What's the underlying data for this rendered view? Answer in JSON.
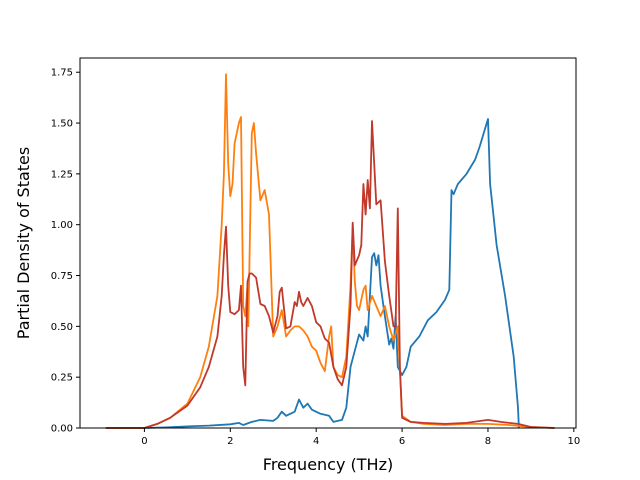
{
  "chart_data": {
    "type": "line",
    "title": "",
    "xlabel": "Frequency (THz)",
    "ylabel": "Partial Density of States",
    "xlim": [
      -1.5,
      10.05
    ],
    "ylim": [
      0,
      1.82
    ],
    "xticks": [
      0,
      2,
      4,
      6,
      8,
      10
    ],
    "yticks": [
      0.0,
      0.25,
      0.5,
      0.75,
      1.0,
      1.25,
      1.5,
      1.75
    ],
    "xtick_labels": [
      "0",
      "2",
      "4",
      "6",
      "8",
      "10"
    ],
    "ytick_labels": [
      "0.00",
      "0.25",
      "0.50",
      "0.75",
      "1.00",
      "1.25",
      "1.50",
      "1.75"
    ],
    "grid": false,
    "legend": "none",
    "series": [
      {
        "color": "#1f77b4",
        "points": [
          [
            -0.9,
            0
          ],
          [
            0,
            0
          ],
          [
            0.5,
            0.003
          ],
          [
            1,
            0.008
          ],
          [
            1.5,
            0.012
          ],
          [
            2,
            0.018
          ],
          [
            2.2,
            0.025
          ],
          [
            2.3,
            0.015
          ],
          [
            2.5,
            0.03
          ],
          [
            2.7,
            0.04
          ],
          [
            3,
            0.035
          ],
          [
            3.1,
            0.05
          ],
          [
            3.2,
            0.08
          ],
          [
            3.3,
            0.06
          ],
          [
            3.5,
            0.08
          ],
          [
            3.6,
            0.14
          ],
          [
            3.7,
            0.1
          ],
          [
            3.8,
            0.12
          ],
          [
            3.9,
            0.09
          ],
          [
            4.1,
            0.07
          ],
          [
            4.3,
            0.06
          ],
          [
            4.4,
            0.03
          ],
          [
            4.6,
            0.04
          ],
          [
            4.7,
            0.1
          ],
          [
            4.8,
            0.3
          ],
          [
            4.9,
            0.38
          ],
          [
            5.0,
            0.46
          ],
          [
            5.1,
            0.43
          ],
          [
            5.15,
            0.5
          ],
          [
            5.2,
            0.45
          ],
          [
            5.3,
            0.84
          ],
          [
            5.35,
            0.86
          ],
          [
            5.4,
            0.8
          ],
          [
            5.45,
            0.85
          ],
          [
            5.5,
            0.7
          ],
          [
            5.6,
            0.55
          ],
          [
            5.7,
            0.41
          ],
          [
            5.75,
            0.44
          ],
          [
            5.8,
            0.39
          ],
          [
            5.85,
            0.55
          ],
          [
            5.9,
            0.3
          ],
          [
            6.0,
            0.26
          ],
          [
            6.1,
            0.3
          ],
          [
            6.2,
            0.4
          ],
          [
            6.4,
            0.45
          ],
          [
            6.6,
            0.53
          ],
          [
            6.8,
            0.57
          ],
          [
            7.0,
            0.63
          ],
          [
            7.1,
            0.68
          ],
          [
            7.15,
            1.17
          ],
          [
            7.2,
            1.15
          ],
          [
            7.3,
            1.2
          ],
          [
            7.5,
            1.25
          ],
          [
            7.7,
            1.32
          ],
          [
            7.8,
            1.38
          ],
          [
            7.9,
            1.45
          ],
          [
            8.0,
            1.52
          ],
          [
            8.05,
            1.2
          ],
          [
            8.1,
            1.1
          ],
          [
            8.2,
            0.9
          ],
          [
            8.4,
            0.65
          ],
          [
            8.6,
            0.35
          ],
          [
            8.7,
            0.1
          ],
          [
            8.72,
            0
          ]
        ]
      },
      {
        "color": "#ff7f0e",
        "points": [
          [
            -0.9,
            0
          ],
          [
            0,
            0
          ],
          [
            0.3,
            0.02
          ],
          [
            0.6,
            0.05
          ],
          [
            1,
            0.12
          ],
          [
            1.3,
            0.25
          ],
          [
            1.5,
            0.4
          ],
          [
            1.7,
            0.65
          ],
          [
            1.8,
            1.0
          ],
          [
            1.85,
            1.25
          ],
          [
            1.9,
            1.74
          ],
          [
            1.95,
            1.3
          ],
          [
            2.0,
            1.14
          ],
          [
            2.05,
            1.2
          ],
          [
            2.1,
            1.4
          ],
          [
            2.2,
            1.5
          ],
          [
            2.25,
            1.53
          ],
          [
            2.3,
            0.6
          ],
          [
            2.35,
            0.55
          ],
          [
            2.4,
            0.7
          ],
          [
            2.42,
            0.5
          ],
          [
            2.5,
            1.45
          ],
          [
            2.55,
            1.5
          ],
          [
            2.6,
            1.35
          ],
          [
            2.7,
            1.12
          ],
          [
            2.8,
            1.17
          ],
          [
            2.9,
            1.05
          ],
          [
            3.0,
            0.45
          ],
          [
            3.1,
            0.5
          ],
          [
            3.2,
            0.58
          ],
          [
            3.3,
            0.45
          ],
          [
            3.4,
            0.48
          ],
          [
            3.5,
            0.5
          ],
          [
            3.6,
            0.5
          ],
          [
            3.7,
            0.48
          ],
          [
            3.8,
            0.45
          ],
          [
            3.9,
            0.4
          ],
          [
            4.0,
            0.38
          ],
          [
            4.1,
            0.32
          ],
          [
            4.2,
            0.28
          ],
          [
            4.3,
            0.45
          ],
          [
            4.35,
            0.5
          ],
          [
            4.4,
            0.3
          ],
          [
            4.5,
            0.26
          ],
          [
            4.6,
            0.25
          ],
          [
            4.7,
            0.35
          ],
          [
            4.8,
            0.7
          ],
          [
            4.85,
            0.99
          ],
          [
            4.9,
            0.72
          ],
          [
            4.95,
            0.6
          ],
          [
            5.0,
            0.58
          ],
          [
            5.1,
            0.68
          ],
          [
            5.15,
            0.7
          ],
          [
            5.2,
            0.58
          ],
          [
            5.3,
            0.65
          ],
          [
            5.4,
            0.6
          ],
          [
            5.5,
            0.55
          ],
          [
            5.6,
            0.6
          ],
          [
            5.7,
            0.5
          ],
          [
            5.8,
            0.43
          ],
          [
            5.9,
            0.5
          ],
          [
            6.0,
            0.06
          ],
          [
            6.2,
            0.03
          ],
          [
            6.5,
            0.02
          ],
          [
            7.0,
            0.015
          ],
          [
            7.5,
            0.02
          ],
          [
            8.0,
            0.02
          ],
          [
            8.5,
            0.015
          ],
          [
            9.0,
            0.005
          ],
          [
            9.55,
            0
          ]
        ]
      },
      {
        "color": "#c0392b",
        "points": [
          [
            -0.9,
            0
          ],
          [
            0,
            0
          ],
          [
            0.3,
            0.02
          ],
          [
            0.6,
            0.05
          ],
          [
            1,
            0.11
          ],
          [
            1.3,
            0.2
          ],
          [
            1.5,
            0.3
          ],
          [
            1.7,
            0.45
          ],
          [
            1.8,
            0.65
          ],
          [
            1.85,
            0.85
          ],
          [
            1.9,
            0.99
          ],
          [
            1.95,
            0.7
          ],
          [
            2.0,
            0.57
          ],
          [
            2.1,
            0.56
          ],
          [
            2.2,
            0.58
          ],
          [
            2.25,
            0.7
          ],
          [
            2.3,
            0.3
          ],
          [
            2.35,
            0.21
          ],
          [
            2.4,
            0.72
          ],
          [
            2.45,
            0.76
          ],
          [
            2.5,
            0.76
          ],
          [
            2.6,
            0.74
          ],
          [
            2.7,
            0.61
          ],
          [
            2.8,
            0.6
          ],
          [
            2.9,
            0.55
          ],
          [
            3.0,
            0.47
          ],
          [
            3.1,
            0.55
          ],
          [
            3.15,
            0.67
          ],
          [
            3.2,
            0.69
          ],
          [
            3.3,
            0.49
          ],
          [
            3.4,
            0.5
          ],
          [
            3.5,
            0.62
          ],
          [
            3.55,
            0.6
          ],
          [
            3.6,
            0.67
          ],
          [
            3.65,
            0.62
          ],
          [
            3.7,
            0.6
          ],
          [
            3.8,
            0.64
          ],
          [
            3.9,
            0.6
          ],
          [
            4.0,
            0.52
          ],
          [
            4.1,
            0.5
          ],
          [
            4.2,
            0.44
          ],
          [
            4.3,
            0.42
          ],
          [
            4.4,
            0.3
          ],
          [
            4.5,
            0.24
          ],
          [
            4.6,
            0.21
          ],
          [
            4.7,
            0.3
          ],
          [
            4.8,
            0.6
          ],
          [
            4.85,
            1.01
          ],
          [
            4.9,
            0.8
          ],
          [
            5.0,
            0.85
          ],
          [
            5.05,
            0.9
          ],
          [
            5.1,
            1.2
          ],
          [
            5.15,
            1.05
          ],
          [
            5.2,
            1.22
          ],
          [
            5.25,
            1.08
          ],
          [
            5.3,
            1.51
          ],
          [
            5.35,
            1.3
          ],
          [
            5.4,
            1.1
          ],
          [
            5.5,
            1.12
          ],
          [
            5.6,
            0.82
          ],
          [
            5.7,
            0.65
          ],
          [
            5.8,
            0.5
          ],
          [
            5.85,
            0.5
          ],
          [
            5.9,
            1.08
          ],
          [
            5.95,
            0.3
          ],
          [
            6.0,
            0.05
          ],
          [
            6.2,
            0.03
          ],
          [
            6.5,
            0.025
          ],
          [
            7.0,
            0.02
          ],
          [
            7.5,
            0.025
          ],
          [
            8.0,
            0.04
          ],
          [
            8.3,
            0.03
          ],
          [
            8.7,
            0.02
          ],
          [
            9.0,
            0.005
          ],
          [
            9.55,
            0
          ]
        ]
      }
    ]
  }
}
